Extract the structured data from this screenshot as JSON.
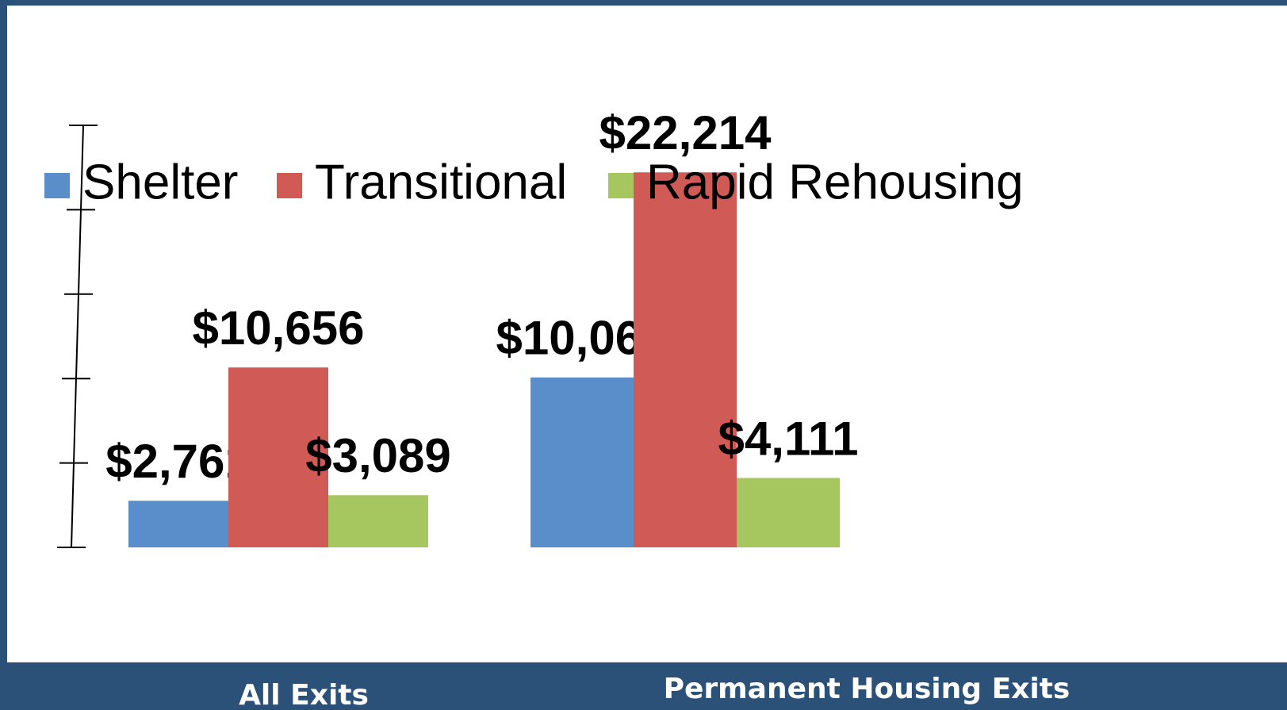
{
  "chart_data": {
    "type": "bar",
    "categories": [
      "All Exits",
      "Permanent Housing Exits"
    ],
    "series": [
      {
        "name": "Shelter",
        "color": "#5a8ecb",
        "values": [
          2761,
          10067
        ],
        "value_labels": [
          "$2,761",
          "$10,067"
        ]
      },
      {
        "name": "Transitional",
        "color": "#d05a55",
        "values": [
          10656,
          22214
        ],
        "value_labels": [
          "$10,656",
          "$22,214"
        ]
      },
      {
        "name": "Rapid Rehousing",
        "color": "#a6c660",
        "values": [
          3089,
          4111
        ],
        "value_labels": [
          "$3,089",
          "$4,111"
        ]
      }
    ],
    "ylim": [
      0,
      25000
    ],
    "yticks": [
      0,
      5000,
      10000,
      15000,
      20000,
      25000
    ],
    "legend": "top"
  }
}
